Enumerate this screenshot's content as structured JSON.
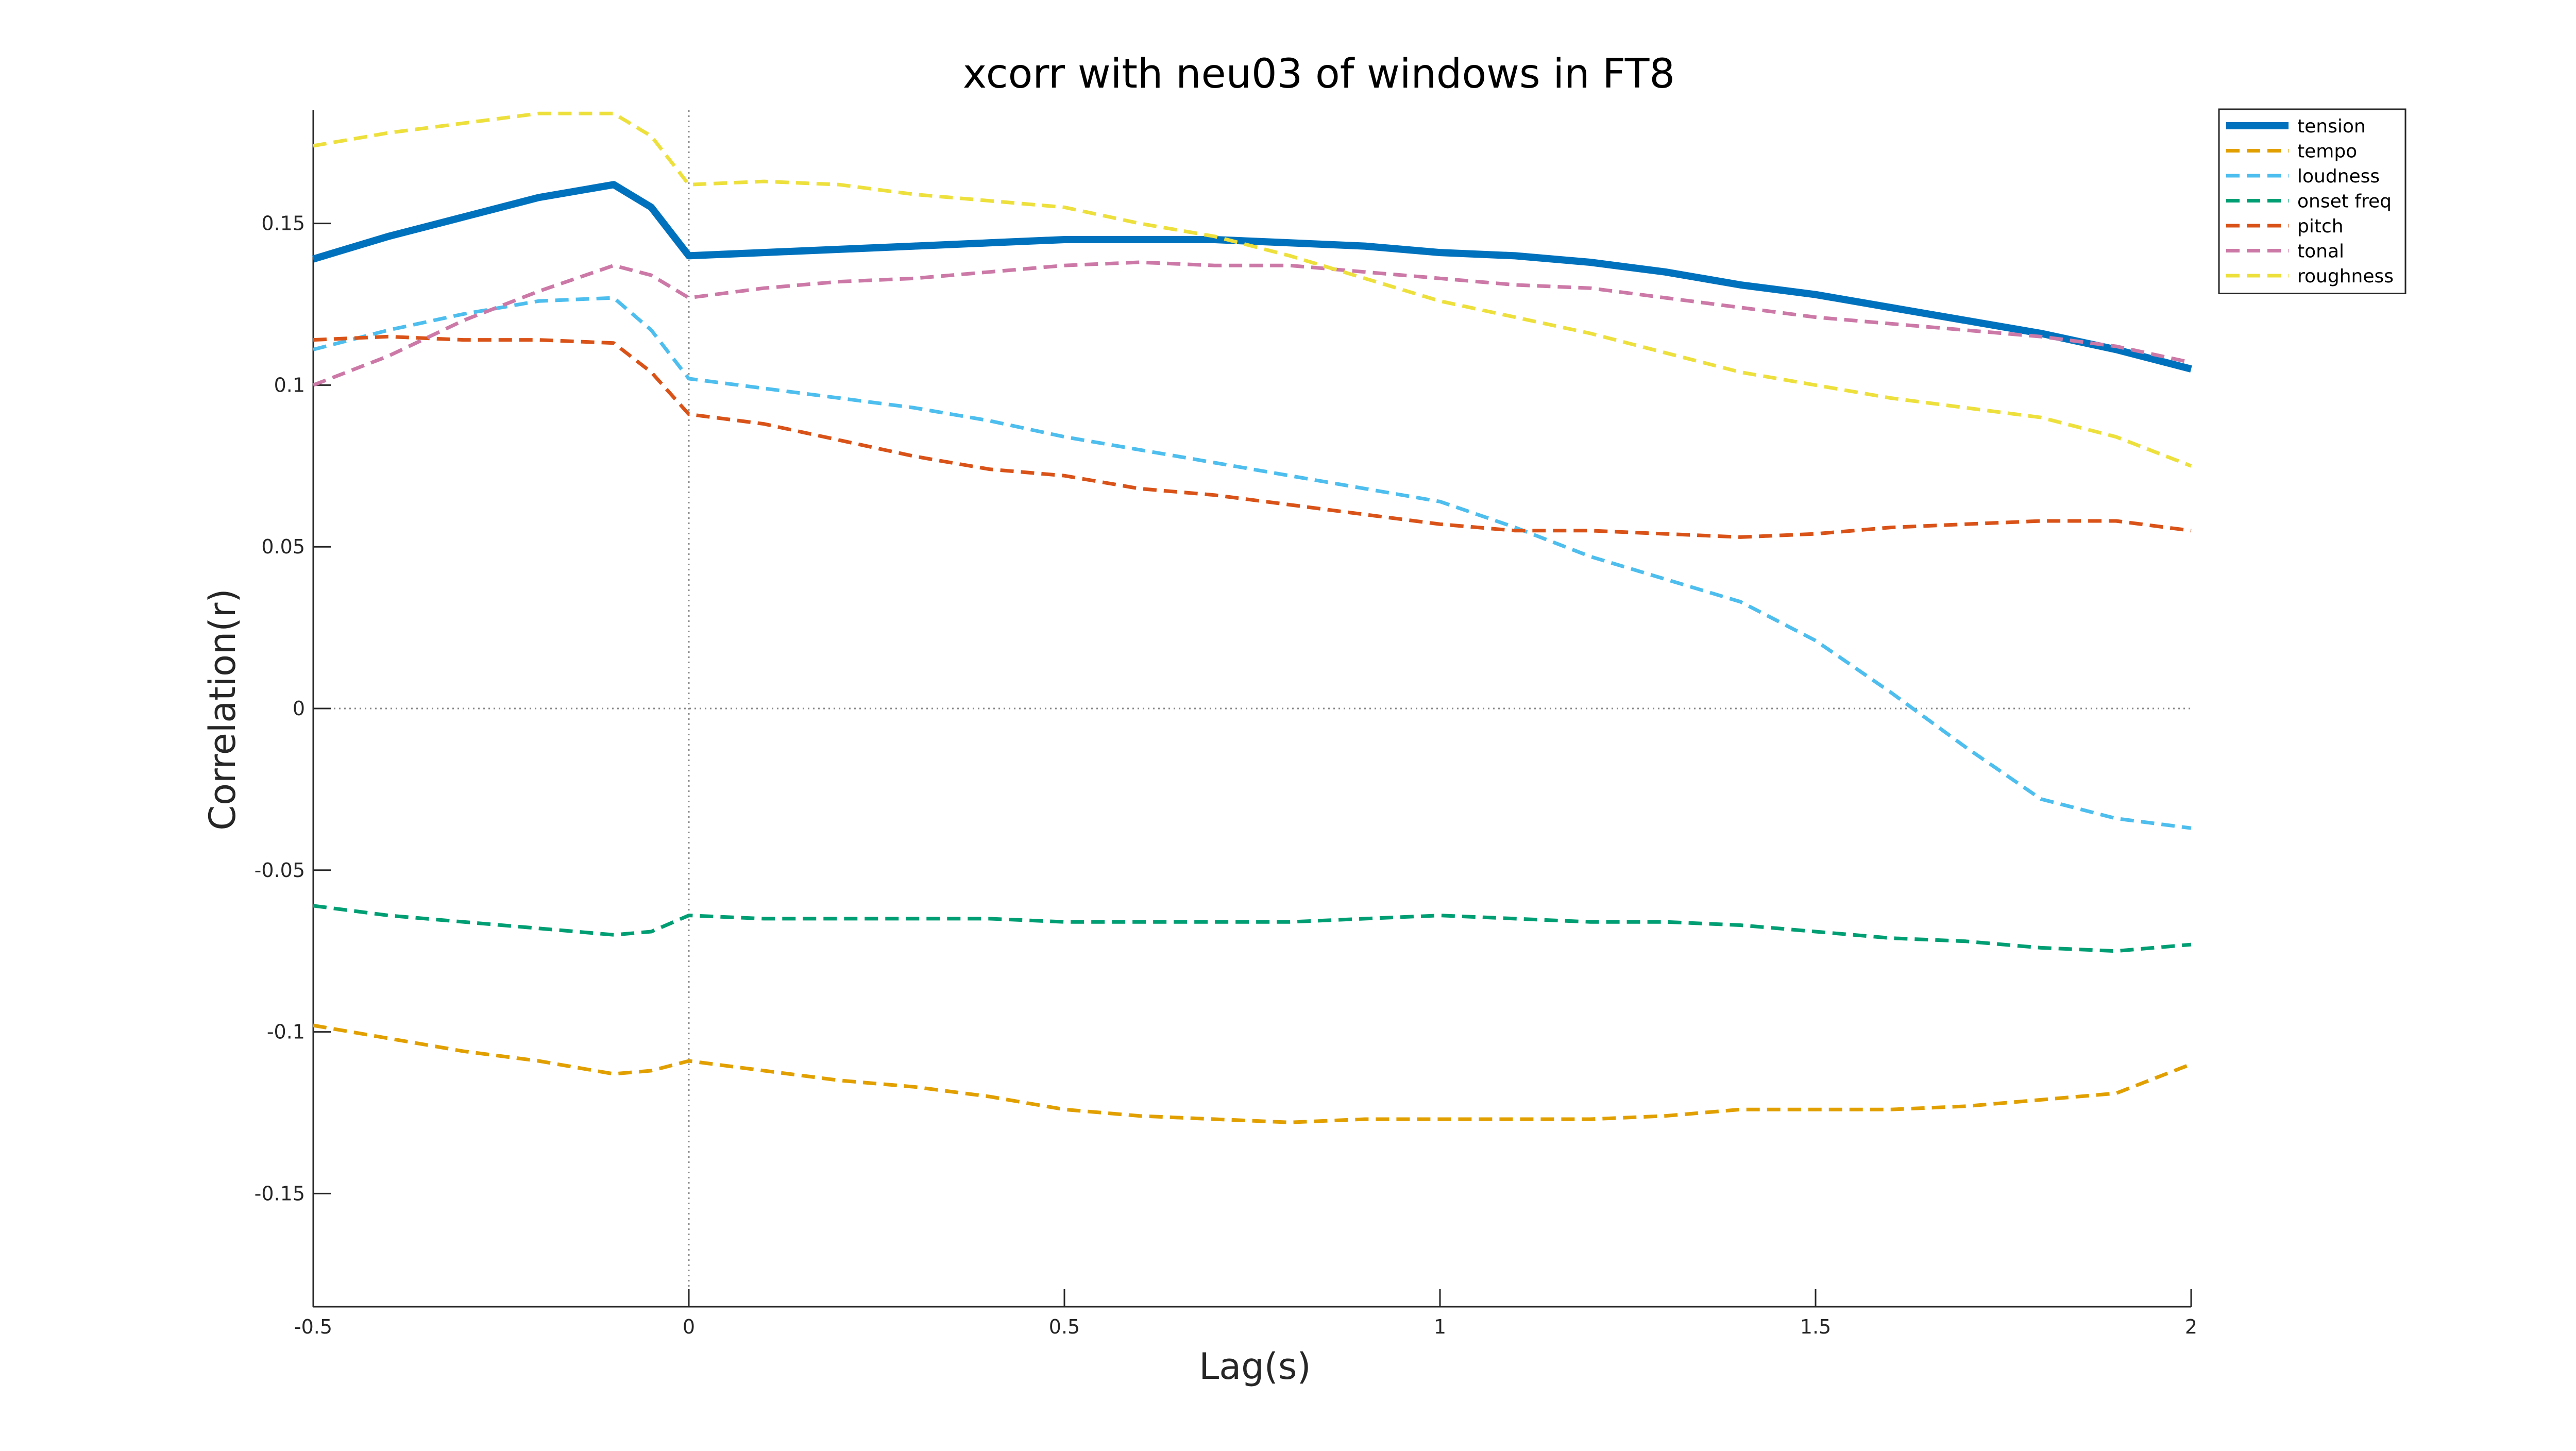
{
  "chart_data": {
    "type": "line",
    "title": "xcorr with neu03 of windows in FT8",
    "xlabel": "Lag(s)",
    "ylabel": "Correlation(r)",
    "xlim": [
      -0.5,
      2
    ],
    "ylim": [
      -0.185,
      0.185
    ],
    "xticks": [
      -0.5,
      0,
      0.5,
      1,
      1.5,
      2
    ],
    "xtick_labels": [
      "-0.5",
      "0",
      "0.5",
      "1",
      "1.5",
      "2"
    ],
    "yticks": [
      -0.15,
      -0.1,
      -0.05,
      0,
      0.05,
      0.1,
      0.15
    ],
    "ytick_labels": [
      "-0.15",
      "-0.1",
      "-0.05",
      "0",
      "0.05",
      "0.1",
      "0.15"
    ],
    "reference_lines": {
      "x": 0,
      "y": 0
    },
    "legend_position": "top-right",
    "x": [
      -0.5,
      -0.4,
      -0.3,
      -0.2,
      -0.1,
      -0.05,
      0,
      0.1,
      0.2,
      0.3,
      0.4,
      0.5,
      0.6,
      0.7,
      0.8,
      0.9,
      1.0,
      1.1,
      1.2,
      1.3,
      1.4,
      1.5,
      1.6,
      1.7,
      1.8,
      1.9,
      2.0
    ],
    "series": [
      {
        "name": "tension",
        "color": "#0072BD",
        "style": "solid",
        "values": [
          0.139,
          0.146,
          0.152,
          0.158,
          0.162,
          0.155,
          0.14,
          0.141,
          0.142,
          0.143,
          0.144,
          0.145,
          0.145,
          0.145,
          0.144,
          0.143,
          0.141,
          0.14,
          0.138,
          0.135,
          0.131,
          0.128,
          0.124,
          0.12,
          0.116,
          0.111,
          0.105
        ]
      },
      {
        "name": "tempo",
        "color": "#E1A000",
        "style": "dashed",
        "values": [
          -0.098,
          -0.102,
          -0.106,
          -0.109,
          -0.113,
          -0.112,
          -0.109,
          -0.112,
          -0.115,
          -0.117,
          -0.12,
          -0.124,
          -0.126,
          -0.127,
          -0.128,
          -0.127,
          -0.127,
          -0.127,
          -0.127,
          -0.126,
          -0.124,
          -0.124,
          -0.124,
          -0.123,
          -0.121,
          -0.119,
          -0.11
        ]
      },
      {
        "name": "loudness",
        "color": "#4DBEEE",
        "style": "dashed",
        "values": [
          0.111,
          0.117,
          0.122,
          0.126,
          0.127,
          0.117,
          0.102,
          0.099,
          0.096,
          0.093,
          0.089,
          0.084,
          0.08,
          0.076,
          0.072,
          0.068,
          0.064,
          0.056,
          0.047,
          0.04,
          0.033,
          0.021,
          0.005,
          -0.012,
          -0.028,
          -0.034,
          -0.037
        ]
      },
      {
        "name": "onset freq",
        "color": "#009E73",
        "style": "dashed",
        "values": [
          -0.061,
          -0.064,
          -0.066,
          -0.068,
          -0.07,
          -0.069,
          -0.064,
          -0.065,
          -0.065,
          -0.065,
          -0.065,
          -0.066,
          -0.066,
          -0.066,
          -0.066,
          -0.065,
          -0.064,
          -0.065,
          -0.066,
          -0.066,
          -0.067,
          -0.069,
          -0.071,
          -0.072,
          -0.074,
          -0.075,
          -0.073
        ]
      },
      {
        "name": "pitch",
        "color": "#D95319",
        "style": "dashed",
        "values": [
          0.114,
          0.115,
          0.114,
          0.114,
          0.113,
          0.104,
          0.091,
          0.088,
          0.083,
          0.078,
          0.074,
          0.072,
          0.068,
          0.066,
          0.063,
          0.06,
          0.057,
          0.055,
          0.055,
          0.054,
          0.053,
          0.054,
          0.056,
          0.057,
          0.058,
          0.058,
          0.055
        ]
      },
      {
        "name": "tonal",
        "color": "#CC79A7",
        "style": "dashed",
        "values": [
          0.1,
          0.109,
          0.12,
          0.129,
          0.137,
          0.134,
          0.127,
          0.13,
          0.132,
          0.133,
          0.135,
          0.137,
          0.138,
          0.137,
          0.137,
          0.135,
          0.133,
          0.131,
          0.13,
          0.127,
          0.124,
          0.121,
          0.119,
          0.117,
          0.115,
          0.112,
          0.107
        ]
      },
      {
        "name": "roughness",
        "color": "#EDE03D",
        "style": "dashed",
        "values": [
          0.174,
          0.178,
          0.181,
          0.184,
          0.184,
          0.177,
          0.162,
          0.163,
          0.162,
          0.159,
          0.157,
          0.155,
          0.15,
          0.146,
          0.14,
          0.133,
          0.126,
          0.121,
          0.116,
          0.11,
          0.104,
          0.1,
          0.096,
          0.093,
          0.09,
          0.084,
          0.075
        ]
      }
    ]
  }
}
